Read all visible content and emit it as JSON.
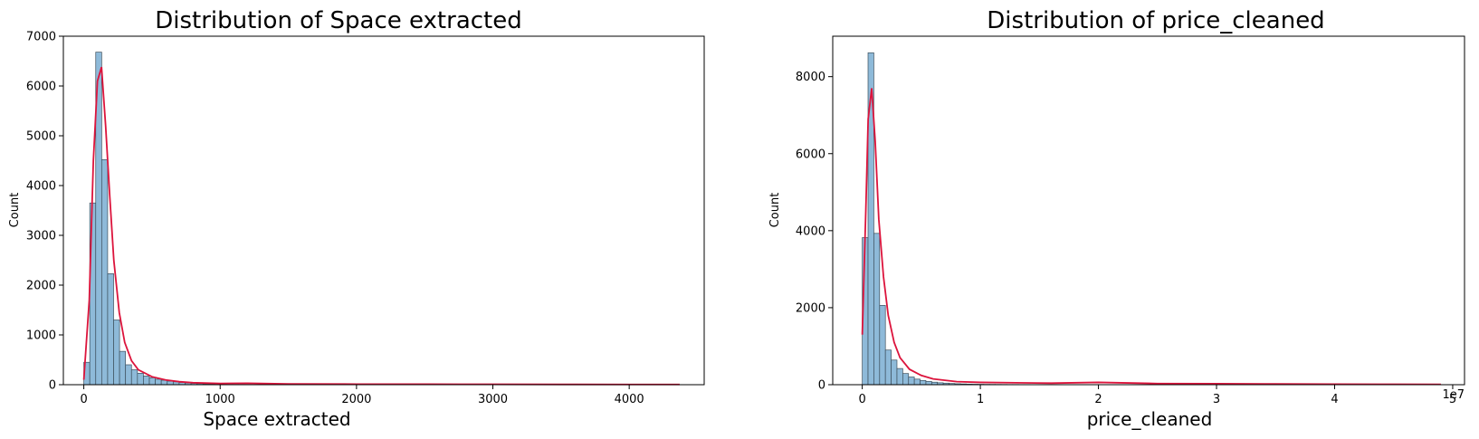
{
  "chart_data": [
    {
      "type": "bar",
      "subtype": "histogram-with-kde",
      "title": "Distribution of Space extracted",
      "xlabel": "Space extracted",
      "ylabel": "Count",
      "x_offset_label": "",
      "xlim": [
        -150,
        4550
      ],
      "ylim": [
        0,
        7000
      ],
      "xticks": [
        0,
        1000,
        2000,
        3000,
        4000
      ],
      "xtick_labels": [
        "0",
        "1000",
        "2000",
        "3000",
        "4000"
      ],
      "yticks": [
        0,
        1000,
        2000,
        3000,
        4000,
        5000,
        6000,
        7000
      ],
      "ytick_labels": [
        "0",
        "1000",
        "2000",
        "3000",
        "4000",
        "5000",
        "6000",
        "7000"
      ],
      "bin_start": 0,
      "bin_width": 43.7,
      "counts": [
        450,
        3650,
        6680,
        4520,
        2230,
        1300,
        670,
        400,
        300,
        230,
        175,
        140,
        110,
        90,
        72,
        58,
        45,
        35,
        27,
        21,
        16,
        12,
        9,
        7,
        6,
        5,
        4,
        3,
        3,
        2,
        2,
        2,
        1,
        1,
        1,
        1,
        1,
        1,
        1,
        1,
        1,
        1,
        1,
        1,
        1,
        1,
        1,
        1,
        1,
        1,
        1,
        1,
        1,
        1,
        1,
        1,
        1,
        1,
        1,
        1,
        1,
        1,
        1,
        1,
        1,
        1,
        1,
        1,
        1,
        1,
        1,
        1,
        1,
        1,
        1,
        1,
        1,
        1,
        1,
        1,
        1,
        1,
        1,
        1,
        1,
        1,
        1,
        1,
        1,
        1,
        1,
        1,
        1,
        1,
        1,
        1,
        1,
        1,
        1,
        1
      ],
      "kde": {
        "x": [
          0,
          40,
          70,
          100,
          130,
          160,
          190,
          220,
          260,
          300,
          350,
          400,
          500,
          600,
          700,
          800,
          1000,
          1200,
          1500,
          2000,
          2500,
          3000,
          3500,
          4000,
          4370
        ],
        "y": [
          100,
          1700,
          4500,
          6100,
          6380,
          5200,
          3800,
          2500,
          1450,
          850,
          480,
          300,
          160,
          95,
          60,
          40,
          25,
          30,
          15,
          12,
          10,
          8,
          6,
          5,
          5
        ]
      },
      "colors": {
        "bar": "#8ebad9",
        "edge": "#3d4f5c",
        "kde": "#dc143c"
      }
    },
    {
      "type": "bar",
      "subtype": "histogram-with-kde",
      "title": "Distribution of price_cleaned",
      "xlabel": "price_cleaned",
      "ylabel": "Count",
      "x_offset_label": "1e7",
      "xlim": [
        -0.25,
        5.1
      ],
      "ylim": [
        0,
        9050
      ],
      "xticks": [
        0,
        1,
        2,
        3,
        4,
        5
      ],
      "xtick_labels": [
        "0",
        "1",
        "2",
        "3",
        "4",
        "5"
      ],
      "yticks": [
        0,
        2000,
        4000,
        6000,
        8000
      ],
      "ytick_labels": [
        "0",
        "2000",
        "4000",
        "6000",
        "8000"
      ],
      "bin_start": 0,
      "bin_width": 0.049,
      "counts": [
        3820,
        8620,
        3930,
        2060,
        900,
        640,
        420,
        290,
        200,
        145,
        110,
        85,
        65,
        50,
        40,
        32,
        25,
        20,
        16,
        13,
        11,
        9,
        8,
        7,
        6,
        5,
        5,
        4,
        4,
        3,
        3,
        3,
        3,
        2,
        2,
        2,
        2,
        2,
        2,
        2,
        2,
        2,
        2,
        1,
        1,
        1,
        1,
        1,
        1,
        1,
        1,
        1,
        1,
        1,
        1,
        1,
        1,
        1,
        1,
        1,
        1,
        1,
        1,
        1,
        1,
        1,
        1,
        1,
        1,
        1,
        1,
        1,
        1,
        1,
        1,
        1,
        1,
        1,
        1,
        1,
        1,
        1,
        1,
        1,
        1,
        1,
        1,
        1,
        1,
        1,
        1,
        1,
        1,
        1,
        1,
        1,
        1,
        1,
        1,
        1
      ],
      "kde": {
        "x": [
          0,
          0.03,
          0.05,
          0.08,
          0.11,
          0.14,
          0.18,
          0.22,
          0.27,
          0.32,
          0.4,
          0.5,
          0.6,
          0.8,
          1.0,
          1.3,
          1.6,
          2.0,
          2.5,
          3.0,
          3.5,
          4.0,
          4.5,
          4.9
        ],
        "y": [
          1300,
          4500,
          6900,
          7700,
          6300,
          4300,
          2800,
          1800,
          1100,
          700,
          400,
          240,
          150,
          80,
          60,
          50,
          40,
          60,
          30,
          25,
          20,
          15,
          10,
          8
        ]
      },
      "colors": {
        "bar": "#8ebad9",
        "edge": "#3d4f5c",
        "kde": "#dc143c"
      }
    }
  ]
}
